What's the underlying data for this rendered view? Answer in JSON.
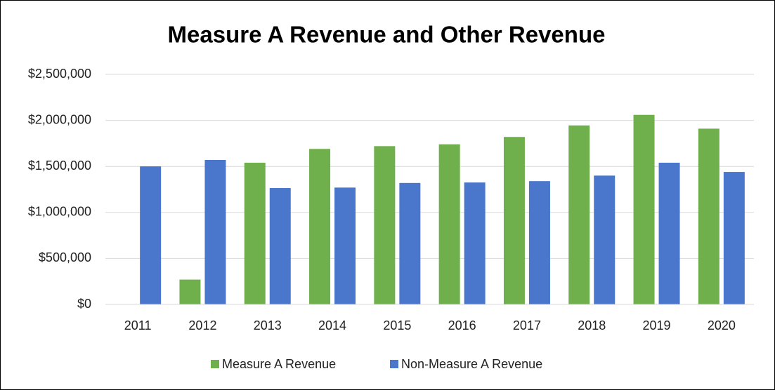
{
  "chart_data": {
    "type": "bar",
    "title": "Measure A Revenue and Other Revenue",
    "categories": [
      "2011",
      "2012",
      "2013",
      "2014",
      "2015",
      "2016",
      "2017",
      "2018",
      "2019",
      "2020"
    ],
    "series": [
      {
        "name": "Measure A Revenue",
        "color": "#70b04c",
        "values": [
          null,
          270000,
          1540000,
          1690000,
          1720000,
          1740000,
          1820000,
          1945000,
          2060000,
          1910000
        ]
      },
      {
        "name": "Non-Measure A Revenue",
        "color": "#4a76cc",
        "values": [
          1500000,
          1570000,
          1265000,
          1270000,
          1320000,
          1325000,
          1340000,
          1400000,
          1540000,
          1440000
        ]
      }
    ],
    "ylim": [
      0,
      2500000
    ],
    "yticks": [
      {
        "value": 0,
        "label": "$0"
      },
      {
        "value": 500000,
        "label": "$500,000"
      },
      {
        "value": 1000000,
        "label": "$1,000,000"
      },
      {
        "value": 1500000,
        "label": "$1,500,000"
      },
      {
        "value": 2000000,
        "label": "$2,000,000"
      },
      {
        "value": 2500000,
        "label": "$2,500,000"
      }
    ],
    "grid": true,
    "legend": "bottom"
  }
}
